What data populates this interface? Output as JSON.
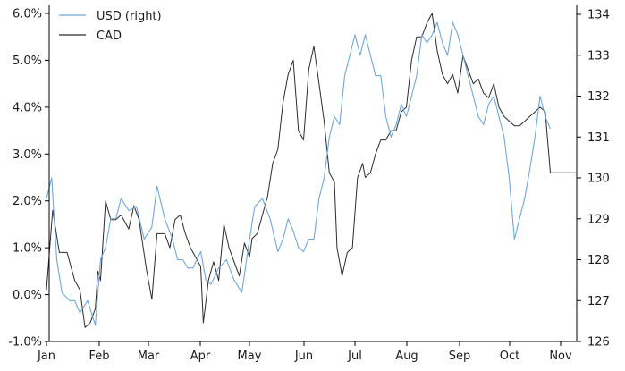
{
  "chart_data": {
    "type": "line",
    "title": "",
    "xlabel": "",
    "ylabel_left": "",
    "ylabel_right": "",
    "grid": false,
    "legend_position": "top-left",
    "colors": {
      "usd": "#6fa8dc",
      "cad": "#2b2b2b"
    },
    "x_ticks": [
      "Jan",
      "Feb",
      "Mar",
      "Apr",
      "May",
      "Jun",
      "Jul",
      "Aug",
      "Sep",
      "Oct",
      "Nov"
    ],
    "y_left": {
      "ylim": [
        -1.0,
        6.0
      ],
      "tick_values": [
        -1.0,
        0.0,
        1.0,
        2.0,
        3.0,
        4.0,
        5.0,
        6.0
      ],
      "tick_labels": [
        "-1.0%",
        "0.0%",
        "1.0%",
        "2.0%",
        "3.0%",
        "4.0%",
        "5.0%",
        "6.0%"
      ]
    },
    "y_right": {
      "ylim": [
        126,
        134
      ],
      "tick_values": [
        126,
        127,
        128,
        129,
        130,
        131,
        132,
        133,
        134
      ],
      "tick_labels": [
        "126",
        "127",
        "128",
        "129",
        "130",
        "131",
        "132",
        "133",
        "134"
      ]
    },
    "series": [
      {
        "name": "CAD",
        "axis": "left",
        "x": [
          0.0,
          0.12,
          0.25,
          0.4,
          0.55,
          0.65,
          0.75,
          0.85,
          0.95,
          1.0,
          1.05,
          1.15,
          1.25,
          1.35,
          1.45,
          1.6,
          1.7,
          1.8,
          1.95,
          2.05,
          2.15,
          2.3,
          2.4,
          2.5,
          2.6,
          2.7,
          2.8,
          2.9,
          3.0,
          3.05,
          3.15,
          3.25,
          3.35,
          3.45,
          3.55,
          3.65,
          3.75,
          3.85,
          3.95,
          4.0,
          4.1,
          4.2,
          4.3,
          4.4,
          4.5,
          4.6,
          4.7,
          4.8,
          4.9,
          5.0,
          5.1,
          5.2,
          5.3,
          5.4,
          5.5,
          5.6,
          5.65,
          5.75,
          5.85,
          5.95,
          6.05,
          6.15,
          6.2,
          6.3,
          6.4,
          6.5,
          6.6,
          6.7,
          6.8,
          6.9,
          7.0,
          7.1,
          7.2,
          7.3,
          7.4,
          7.5,
          7.6,
          7.7,
          7.8,
          7.9,
          8.0,
          8.1,
          8.2,
          8.3,
          8.4,
          8.5,
          8.6,
          8.7,
          8.8,
          8.9,
          9.0,
          9.1,
          9.2,
          9.3,
          9.4,
          9.5,
          9.6,
          9.7,
          9.8,
          9.9,
          10.0,
          10.1,
          10.2,
          10.3
        ],
        "values": [
          0.1,
          1.8,
          0.9,
          0.9,
          0.3,
          0.1,
          -0.7,
          -0.6,
          -0.3,
          0.5,
          0.3,
          2.0,
          1.6,
          1.6,
          1.7,
          1.4,
          1.9,
          1.6,
          0.5,
          -0.1,
          1.3,
          1.3,
          1.0,
          1.6,
          1.7,
          1.3,
          1.0,
          0.8,
          0.6,
          -0.6,
          0.3,
          0.7,
          0.3,
          1.5,
          1.0,
          0.7,
          0.4,
          1.1,
          0.8,
          1.2,
          1.3,
          1.7,
          2.1,
          2.8,
          3.1,
          4.1,
          4.7,
          5.0,
          3.5,
          3.3,
          4.8,
          5.3,
          4.5,
          3.7,
          2.6,
          2.4,
          1.0,
          0.4,
          0.9,
          1.0,
          2.5,
          2.8,
          2.5,
          2.6,
          3.0,
          3.3,
          3.3,
          3.5,
          3.5,
          3.9,
          4.0,
          5.0,
          5.5,
          5.5,
          5.8,
          6.0,
          5.2,
          4.7,
          4.5,
          4.7,
          4.3,
          5.1,
          4.8,
          4.5,
          4.6,
          4.3,
          4.2,
          4.5,
          4.0,
          3.8,
          3.7,
          3.6,
          3.6,
          3.7,
          3.8,
          3.9,
          4.0,
          3.9,
          2.6,
          2.6,
          2.6,
          2.6,
          2.6,
          2.6
        ]
      },
      {
        "name": "USD (right)",
        "axis": "right",
        "x": [
          0.0,
          0.1,
          0.2,
          0.3,
          0.45,
          0.55,
          0.65,
          0.8,
          0.95,
          1.05,
          1.15,
          1.25,
          1.35,
          1.45,
          1.6,
          1.75,
          1.9,
          2.05,
          2.15,
          2.3,
          2.45,
          2.55,
          2.65,
          2.75,
          2.85,
          3.0,
          3.1,
          3.2,
          3.35,
          3.5,
          3.65,
          3.8,
          3.95,
          4.05,
          4.2,
          4.35,
          4.5,
          4.6,
          4.7,
          4.8,
          4.9,
          5.0,
          5.1,
          5.2,
          5.3,
          5.4,
          5.5,
          5.6,
          5.7,
          5.8,
          5.9,
          6.0,
          6.1,
          6.2,
          6.3,
          6.4,
          6.5,
          6.6,
          6.7,
          6.8,
          6.9,
          7.0,
          7.1,
          7.2,
          7.3,
          7.4,
          7.5,
          7.6,
          7.7,
          7.8,
          7.9,
          8.0,
          8.1,
          8.2,
          8.3,
          8.4,
          8.5,
          8.6,
          8.7,
          8.8,
          8.9,
          9.0,
          9.1,
          9.2,
          9.3,
          9.4,
          9.5,
          9.6,
          9.7,
          9.8
        ],
        "values": [
          129.5,
          130.0,
          128.0,
          127.2,
          127.0,
          127.0,
          126.7,
          127.0,
          126.4,
          128.0,
          128.3,
          129.0,
          129.0,
          129.5,
          129.2,
          129.3,
          128.5,
          128.8,
          129.8,
          129.0,
          128.5,
          128.0,
          128.0,
          127.8,
          127.8,
          128.2,
          127.5,
          127.4,
          127.8,
          128.0,
          127.5,
          127.2,
          128.5,
          129.3,
          129.5,
          129.0,
          128.2,
          128.5,
          129.0,
          128.7,
          128.3,
          128.2,
          128.5,
          128.5,
          129.5,
          130.0,
          131.0,
          131.5,
          131.3,
          132.5,
          133.0,
          133.5,
          133.0,
          133.5,
          133.0,
          132.5,
          132.5,
          131.5,
          131.0,
          131.3,
          131.8,
          131.5,
          132.0,
          132.5,
          133.5,
          133.3,
          133.5,
          133.8,
          133.3,
          133.0,
          133.8,
          133.5,
          133.0,
          132.5,
          132.0,
          131.5,
          131.3,
          131.8,
          132.0,
          131.5,
          131.0,
          130.0,
          128.5,
          129.0,
          129.5,
          130.2,
          131.0,
          132.0,
          131.5,
          131.2
        ]
      }
    ]
  }
}
